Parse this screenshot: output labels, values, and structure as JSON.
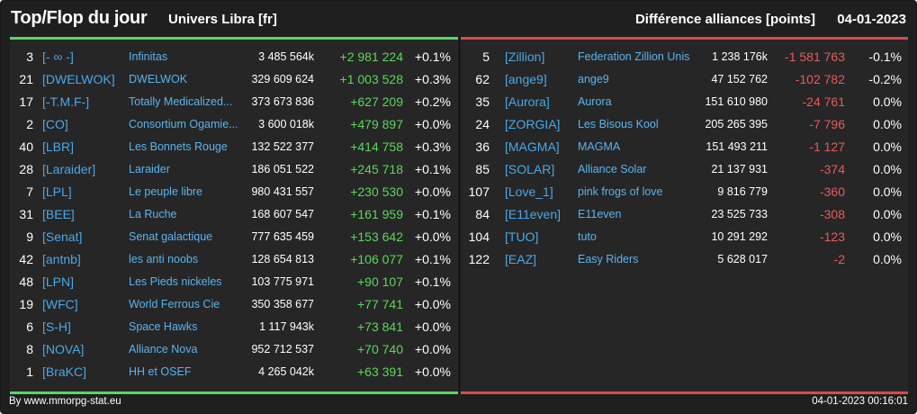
{
  "header": {
    "title": "Top/Flop du jour",
    "subtitle": "Univers Libra [fr]",
    "metric": "Différence alliances [points]",
    "date": "04-01-2023"
  },
  "colors": {
    "gain": "#5cd65c",
    "loss": "#e85a5a",
    "tag": "#4aa8e8",
    "background": "#1f1f1f"
  },
  "top": [
    {
      "rank": "3",
      "tag": "[- ∞ -]",
      "name": "Infinitas",
      "points": "3 485 564k",
      "diff": "+2 981 224",
      "pct": "+0.1%"
    },
    {
      "rank": "21",
      "tag": "[DWELWOK]",
      "name": "DWELWOK",
      "points": "329 609 624",
      "diff": "+1 003 528",
      "pct": "+0.3%"
    },
    {
      "rank": "17",
      "tag": "[-T.M.F-]",
      "name": "Totally Medicalized...",
      "points": "373 673 836",
      "diff": "+627 209",
      "pct": "+0.2%"
    },
    {
      "rank": "2",
      "tag": "[CO]",
      "name": "Consortium Ogamie...",
      "points": "3 600 018k",
      "diff": "+479 897",
      "pct": "+0.0%"
    },
    {
      "rank": "40",
      "tag": "[LBR]",
      "name": "Les Bonnets Rouge",
      "points": "132 522 377",
      "diff": "+414 758",
      "pct": "+0.3%"
    },
    {
      "rank": "28",
      "tag": "[Laraider]",
      "name": "Laraider",
      "points": "186 051 522",
      "diff": "+245 718",
      "pct": "+0.1%"
    },
    {
      "rank": "7",
      "tag": "[LPL]",
      "name": "Le peuple libre",
      "points": "980 431 557",
      "diff": "+230 530",
      "pct": "+0.0%"
    },
    {
      "rank": "31",
      "tag": "[BEE]",
      "name": "La Ruche",
      "points": "168 607 547",
      "diff": "+161 959",
      "pct": "+0.1%"
    },
    {
      "rank": "9",
      "tag": "[Senat]",
      "name": "Senat galactique",
      "points": "777 635 459",
      "diff": "+153 642",
      "pct": "+0.0%"
    },
    {
      "rank": "42",
      "tag": "[antnb]",
      "name": "les anti noobs",
      "points": "128 654 813",
      "diff": "+106 077",
      "pct": "+0.1%"
    },
    {
      "rank": "48",
      "tag": "[LPN]",
      "name": "Les Pieds nickeles",
      "points": "103 775 971",
      "diff": "+90 107",
      "pct": "+0.1%"
    },
    {
      "rank": "19",
      "tag": "[WFC]",
      "name": "World Ferrous Cie",
      "points": "350 358 677",
      "diff": "+77 741",
      "pct": "+0.0%"
    },
    {
      "rank": "6",
      "tag": "[S-H]",
      "name": "Space Hawks",
      "points": "1 117 943k",
      "diff": "+73 841",
      "pct": "+0.0%"
    },
    {
      "rank": "8",
      "tag": "[NOVA]",
      "name": "Alliance Nova",
      "points": "952 712 537",
      "diff": "+70 740",
      "pct": "+0.0%"
    },
    {
      "rank": "1",
      "tag": "[BraKC]",
      "name": "HH et OSEF",
      "points": "4 265 042k",
      "diff": "+63 391",
      "pct": "+0.0%"
    }
  ],
  "flop": [
    {
      "rank": "5",
      "tag": "[Zillion]",
      "name": "Federation Zillion Unis",
      "points": "1 238 176k",
      "diff": "-1 581 763",
      "pct": "-0.1%"
    },
    {
      "rank": "62",
      "tag": "[ange9]",
      "name": "ange9",
      "points": "47 152 762",
      "diff": "-102 782",
      "pct": "-0.2%"
    },
    {
      "rank": "35",
      "tag": "[Aurora]",
      "name": "Aurora",
      "points": "151 610 980",
      "diff": "-24 761",
      "pct": "0.0%"
    },
    {
      "rank": "24",
      "tag": "[ZORGIA]",
      "name": "Les Bisous Kool",
      "points": "205 265 395",
      "diff": "-7 796",
      "pct": "0.0%"
    },
    {
      "rank": "36",
      "tag": "[MAGMA]",
      "name": "MAGMA",
      "points": "151 493 211",
      "diff": "-1 127",
      "pct": "0.0%"
    },
    {
      "rank": "85",
      "tag": "[SOLAR]",
      "name": "Alliance Solar",
      "points": "21 137 931",
      "diff": "-374",
      "pct": "0.0%"
    },
    {
      "rank": "107",
      "tag": "[Love_1]",
      "name": "pink frogs of love",
      "points": "9 816 779",
      "diff": "-360",
      "pct": "0.0%"
    },
    {
      "rank": "84",
      "tag": "[E11even]",
      "name": "E11even",
      "points": "23 525 733",
      "diff": "-308",
      "pct": "0.0%"
    },
    {
      "rank": "104",
      "tag": "[TUO]",
      "name": "tuto",
      "points": "10 291 292",
      "diff": "-123",
      "pct": "0.0%"
    },
    {
      "rank": "122",
      "tag": "[EAZ]",
      "name": "Easy Riders",
      "points": "5 628 017",
      "diff": "-2",
      "pct": "0.0%"
    }
  ],
  "footer": {
    "source": "By www.mmorpg-stat.eu",
    "timestamp": "04-01-2023 00:16:01"
  }
}
